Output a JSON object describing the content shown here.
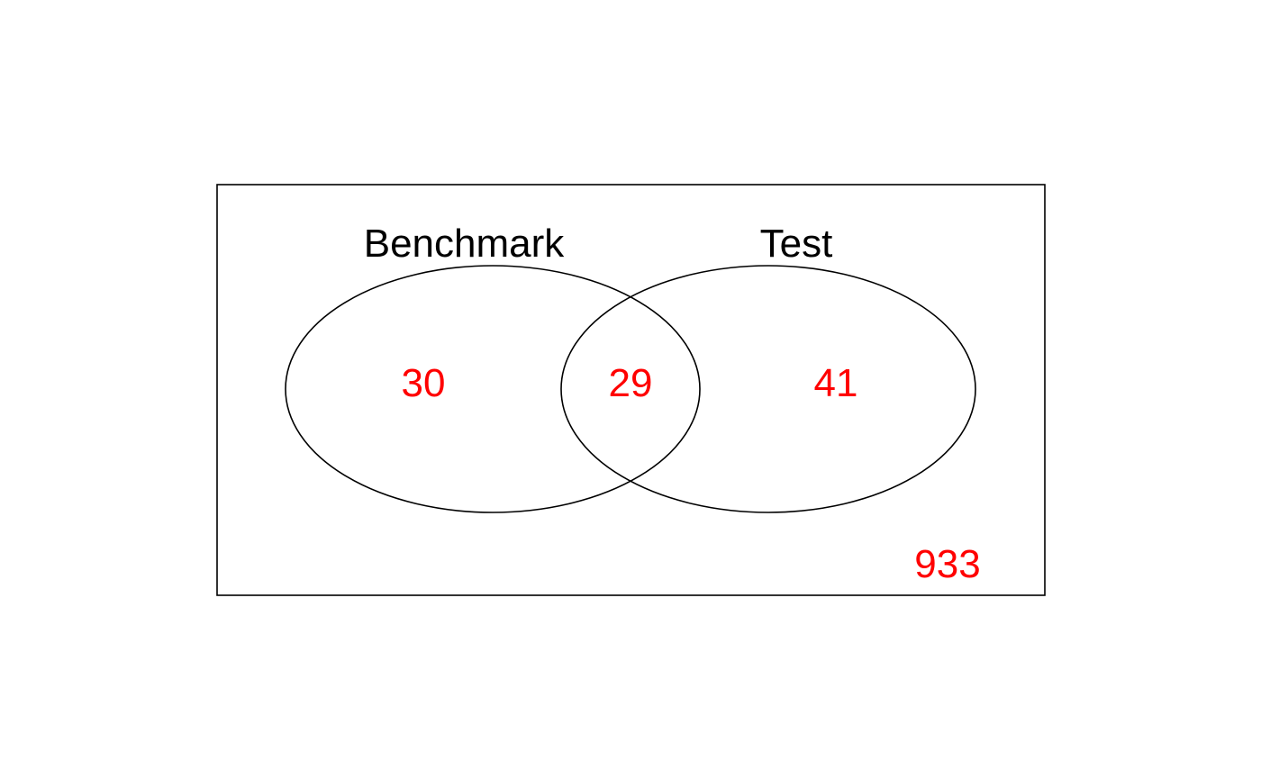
{
  "venn": {
    "sets": [
      {
        "label": "Benchmark"
      },
      {
        "label": "Test"
      }
    ],
    "counts": {
      "benchmark_only": "30",
      "intersection": "29",
      "test_only": "41",
      "outside": "933"
    },
    "colors": {
      "outline": "#000000",
      "count_text": "#ff0000",
      "label_text": "#000000"
    }
  }
}
